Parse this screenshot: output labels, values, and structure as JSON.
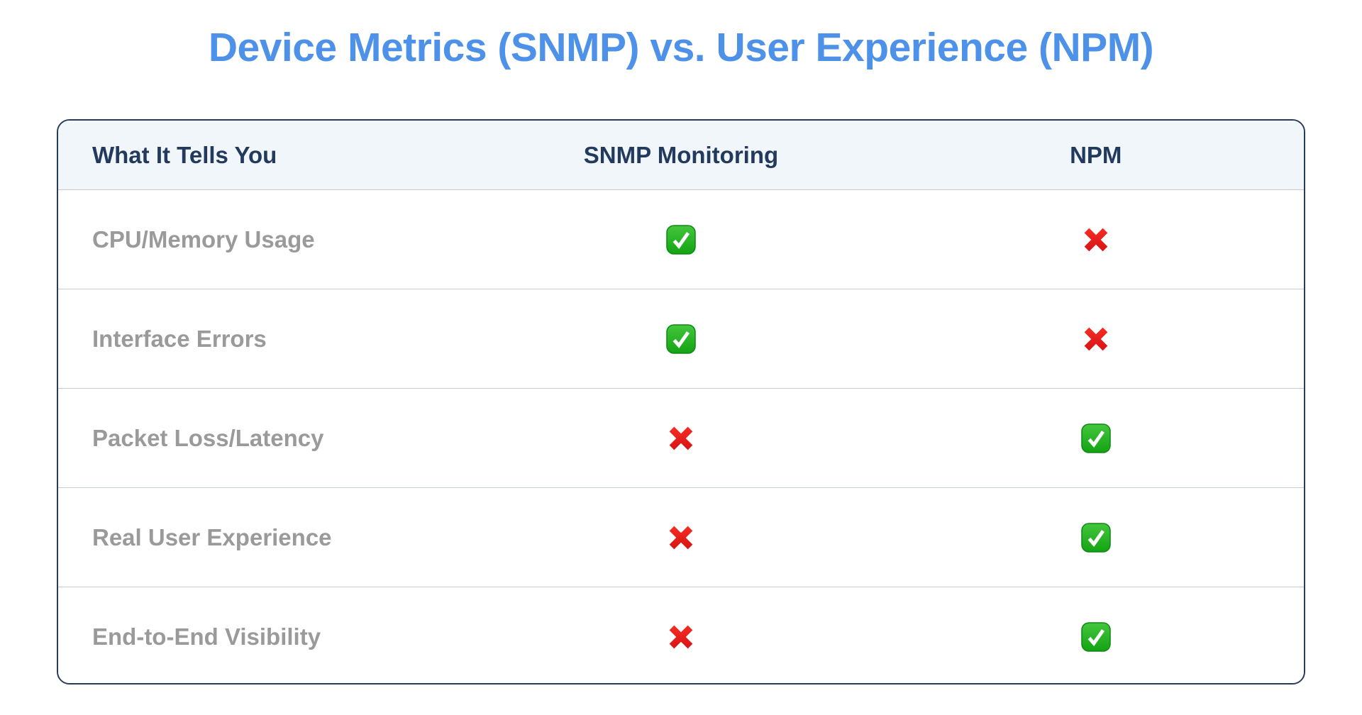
{
  "page": {
    "title": "Device Metrics (SNMP) vs. User Experience (NPM)"
  },
  "colors": {
    "title_blue": "#4d92e8",
    "header_text_navy": "#223a5e",
    "header_background": "#f1f6fb",
    "outer_border_navy": "#263c58",
    "row_divider_gray": "#c6ccd6",
    "row_label_gray": "#9a9a9a",
    "check_green_top": "#44c63c",
    "check_green_bottom": "#13a313",
    "cross_red": "#e71f1f"
  },
  "table": {
    "columns": [
      {
        "label": "What It Tells You"
      },
      {
        "label": "SNMP Monitoring"
      },
      {
        "label": "NPM"
      }
    ],
    "rows": [
      {
        "label": "CPU/Memory Usage",
        "snmp": "check",
        "npm": "cross"
      },
      {
        "label": "Interface Errors",
        "snmp": "check",
        "npm": "cross"
      },
      {
        "label": "Packet Loss/Latency",
        "snmp": "cross",
        "npm": "check"
      },
      {
        "label": "Real User Experience",
        "snmp": "cross",
        "npm": "check"
      },
      {
        "label": "End-to-End Visibility",
        "snmp": "cross",
        "npm": "check"
      }
    ],
    "icons": {
      "check": "check-icon",
      "cross": "cross-icon"
    }
  },
  "chart_data": {
    "type": "table",
    "title": "Device Metrics (SNMP) vs. User Experience (NPM)",
    "columns": [
      "What It Tells You",
      "SNMP Monitoring",
      "NPM"
    ],
    "rows": [
      [
        "CPU/Memory Usage",
        "yes",
        "no"
      ],
      [
        "Interface Errors",
        "yes",
        "no"
      ],
      [
        "Packet Loss/Latency",
        "no",
        "yes"
      ],
      [
        "Real User Experience",
        "no",
        "yes"
      ],
      [
        "End-to-End Visibility",
        "no",
        "yes"
      ]
    ],
    "legend": {
      "yes": "green check (capability present)",
      "no": "red cross (capability absent)"
    }
  }
}
